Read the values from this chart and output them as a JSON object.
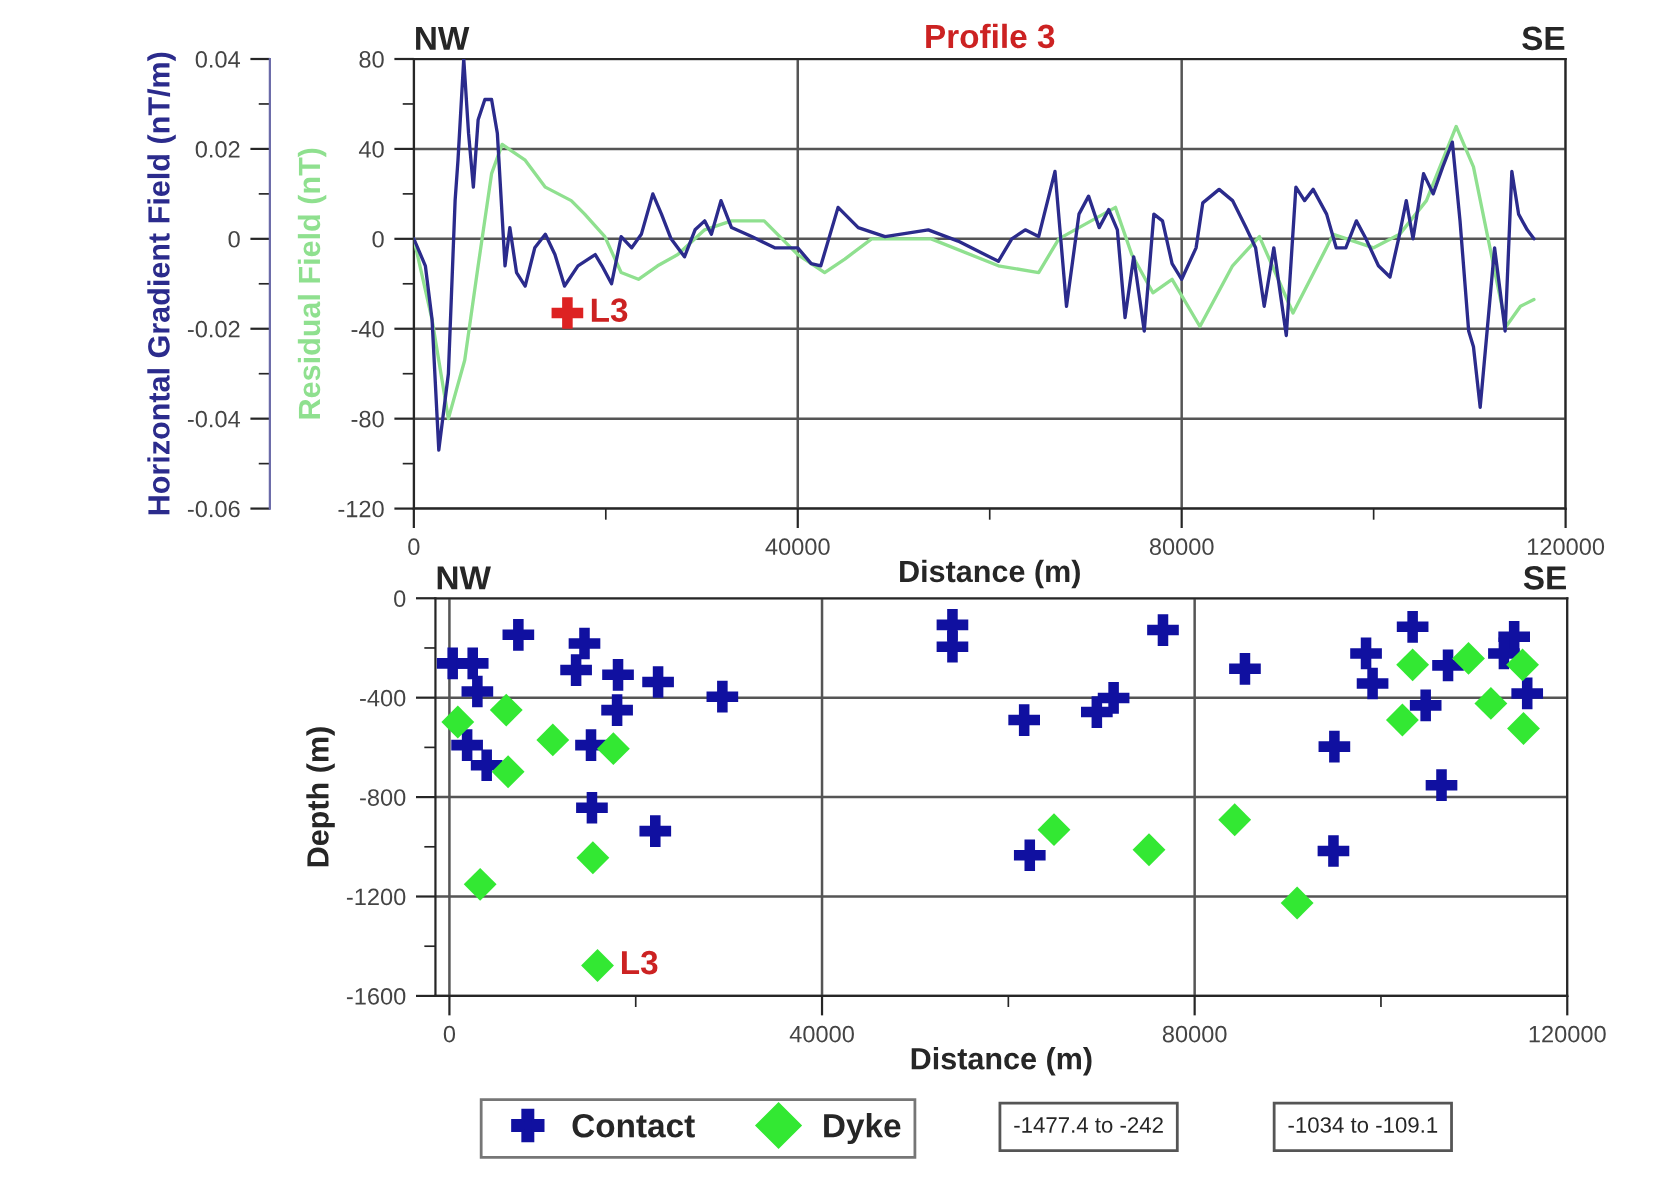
{
  "chart_data": [
    {
      "type": "line",
      "title": "Profile 3",
      "xlabel": "Distance (m)",
      "ylabel": "Residual Field (nT)",
      "y2label": "Horizontal Gradient Field (nT/m)",
      "xlim": [
        0,
        120000
      ],
      "xticks": [
        0,
        {
          "value": 20000,
          "label": null
        },
        40000,
        {
          "value": 60000,
          "label": null
        },
        80000,
        {
          "value": 100000,
          "label": null
        },
        120000
      ],
      "ylim": [
        -120,
        80
      ],
      "yticks": [
        -120,
        {
          "value": -100,
          "label": null
        },
        -80,
        {
          "value": -60,
          "label": null
        },
        -40,
        {
          "value": -20,
          "label": null
        },
        0,
        {
          "value": 20,
          "label": null
        },
        40,
        {
          "value": 60,
          "label": null
        },
        80
      ],
      "y2lim": [
        -0.06,
        0.04
      ],
      "y2ticks": [
        -0.06,
        {
          "value": -0.05,
          "label": null
        },
        -0.04,
        {
          "value": -0.03,
          "label": null
        },
        -0.02,
        {
          "value": -0.01,
          "label": null
        },
        0,
        {
          "value": 0.01,
          "label": null
        },
        0.02,
        {
          "value": 0.03,
          "label": null
        },
        0.04
      ],
      "grid": true,
      "line_style": "solid",
      "annotations": [
        "NW",
        "SE",
        {
          "text": "L3",
          "x": 16000,
          "y": -33
        }
      ],
      "series": [
        {
          "color": "#8fe08f",
          "x": [
            0,
            1900,
            3600,
            5300,
            6700,
            8100,
            9200,
            11600,
            13700,
            16400,
            17800,
            19900,
            21600,
            23400,
            25400,
            27500,
            30300,
            33100,
            36500,
            40000,
            42800,
            44900,
            47700,
            53900,
            60900,
            65100,
            67200,
            69300,
            73100,
            74800,
            77000,
            79000,
            81900,
            85300,
            88100,
            91600,
            95800,
            100000,
            102700,
            105500,
            108600,
            110400,
            112500,
            113800,
            115300,
            116700
          ],
          "values": [
            0,
            -36,
            -80,
            -54,
            -12,
            29,
            42,
            35,
            23,
            17,
            11,
            1,
            -15,
            -18,
            -12,
            -7,
            4,
            8,
            8,
            -7,
            -15,
            -9,
            0,
            0,
            -12,
            -15,
            0,
            5,
            14,
            -7,
            -24,
            -18,
            -39,
            -12,
            1,
            -33,
            2,
            -4,
            2,
            17,
            50,
            32,
            -12,
            -39,
            -30,
            -27
          ]
        },
        {
          "color": "#2b2b8c",
          "axis": "y2",
          "x": [
            0,
            1200,
            1900,
            2600,
            3600,
            4300,
            4600,
            5200,
            5700,
            6200,
            6700,
            7400,
            8100,
            8700,
            9500,
            10000,
            10700,
            11600,
            12600,
            13700,
            14700,
            15700,
            17100,
            18900,
            19600,
            20600,
            21600,
            22700,
            23700,
            24900,
            25800,
            26800,
            28200,
            29300,
            30300,
            31000,
            32000,
            33100,
            35200,
            37600,
            40000,
            41400,
            42400,
            44200,
            46300,
            49100,
            53600,
            56700,
            60900,
            62300,
            63700,
            65100,
            66800,
            68000,
            69300,
            70300,
            71400,
            72400,
            73300,
            74100,
            75000,
            76100,
            77100,
            78000,
            79000,
            80000,
            81500,
            82200,
            83900,
            85300,
            86700,
            87700,
            88600,
            89600,
            90900,
            91900,
            92800,
            93700,
            95100,
            96100,
            97100,
            98200,
            99200,
            100500,
            101700,
            102600,
            103400,
            104100,
            105200,
            106200,
            107200,
            108200,
            109000,
            109900,
            110400,
            111100,
            111800,
            112600,
            113200,
            113700,
            114400,
            115100,
            116000,
            116700
          ],
          "values": [
            0,
            -0.006,
            -0.018,
            -0.047,
            -0.03,
            0.0085,
            0.0175,
            0.04,
            0.0235,
            0.0115,
            0.0265,
            0.031,
            0.031,
            0.0235,
            -0.006,
            0.0025,
            -0.0075,
            -0.0105,
            -0.002,
            0.001,
            -0.0035,
            -0.0105,
            -0.006,
            -0.0035,
            -0.006,
            -0.01,
            0.0005,
            -0.002,
            0.001,
            0.01,
            0.0055,
            0,
            -0.004,
            0.002,
            0.004,
            0.001,
            0.0085,
            0.0025,
            0.0005,
            -0.002,
            -0.002,
            -0.0055,
            -0.006,
            0.007,
            0.0025,
            0.0005,
            0.002,
            -0.0005,
            -0.005,
            0,
            0.002,
            0.0005,
            0.015,
            -0.015,
            0.0055,
            0.0095,
            0.0025,
            0.0065,
            0.002,
            -0.0175,
            -0.004,
            -0.0205,
            0.0055,
            0.004,
            -0.0055,
            -0.009,
            -0.002,
            0.008,
            0.011,
            0.0085,
            0.0025,
            -0.002,
            -0.015,
            -0.002,
            -0.0215,
            0.0115,
            0.0085,
            0.011,
            0.0055,
            -0.002,
            -0.002,
            0.004,
            0,
            -0.006,
            -0.0085,
            0,
            0.0085,
            0,
            0.0145,
            0.01,
            0.016,
            0.0215,
            0.004,
            -0.0205,
            -0.024,
            -0.0375,
            -0.021,
            -0.002,
            -0.012,
            -0.0205,
            0.015,
            0.0055,
            0.002,
            0
          ]
        },
        {
          "type": "scatter",
          "marker": "cross",
          "color": "#dd2222",
          "x": [
            16000
          ],
          "values": [
            -33
          ]
        }
      ]
    },
    {
      "type": "scatter",
      "xlabel": "Distance (m)",
      "ylabel": "Depth (m)",
      "xlim": [
        -1500,
        120000
      ],
      "xticks": [
        0,
        {
          "value": 20000,
          "label": null
        },
        40000,
        {
          "value": 60000,
          "label": null
        },
        80000,
        {
          "value": 100000,
          "label": null
        },
        120000
      ],
      "ylim": [
        -1600,
        0
      ],
      "yticks": [
        -1600,
        {
          "value": -1400,
          "label": null
        },
        -1200,
        {
          "value": -1000,
          "label": null
        },
        -800,
        {
          "value": -600,
          "label": null
        },
        -400,
        {
          "value": -200,
          "label": null
        },
        0
      ],
      "grid": true,
      "legend": "bottom",
      "annotations": [
        "NW",
        "SE",
        "-1477.4 to -242",
        "-1034 to -109.1",
        {
          "text": "L3",
          "x": 15900,
          "y": -1477.4
        }
      ],
      "series": [
        {
          "name": "Contact",
          "marker": "cross",
          "color": "#1010a0",
          "x": [
            7400,
            14500,
            350,
            2500,
            3000,
            13600,
            18100,
            22400,
            29300,
            18000,
            1900,
            15200,
            4000,
            15300,
            22100,
            54000,
            54000,
            61700,
            69500,
            71300,
            62300,
            76600,
            85400,
            98400,
            99100,
            95000,
            94900,
            103400,
            107200,
            104800,
            106500,
            114300,
            113200,
            115700
          ],
          "values": [
            -147,
            -182,
            -262,
            -262,
            -375,
            -289,
            -308,
            -337,
            -396,
            -450,
            -591,
            -591,
            -672,
            -843,
            -937,
            -107,
            -195,
            -490,
            -458,
            -401,
            -1034,
            -128,
            -284,
            -222,
            -343,
            -597,
            -1017,
            -115,
            -270,
            -431,
            -752,
            -155,
            -222,
            -383
          ]
        },
        {
          "name": "Dyke",
          "marker": "diamond",
          "color": "#33e833",
          "x": [
            900,
            6100,
            6300,
            11100,
            17600,
            15400,
            3300,
            15900,
            64900,
            75100,
            84300,
            91000,
            103400,
            109400,
            115200,
            102300,
            111800,
            115300
          ],
          "values": [
            -498,
            -450,
            -698,
            -570,
            -605,
            -1044,
            -1151,
            -1477.4,
            -931,
            -1012,
            -891,
            -1226,
            -268,
            -242,
            -268,
            -490,
            -423,
            -524
          ]
        }
      ]
    }
  ]
}
